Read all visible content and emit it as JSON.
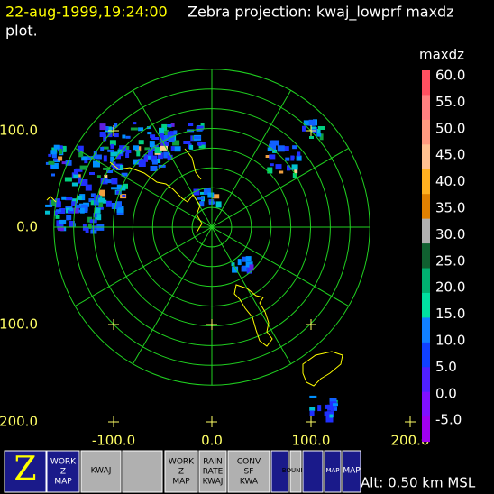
{
  "header": {
    "timestamp": "22-aug-1999,19:24:00",
    "title": "Zebra projection: kwaj_lowprf maxdz",
    "title_cont": "plot."
  },
  "plot": {
    "x_labels": [
      "-100.0",
      "0.0",
      "100.0",
      "200.0"
    ],
    "y_labels": [
      "100.0",
      "0.0",
      "100.0",
      "200.0"
    ]
  },
  "colorbar": {
    "field": "maxdz",
    "labels": [
      "60.0",
      "55.0",
      "50.0",
      "45.0",
      "40.0",
      "35.0",
      "30.0",
      "25.0",
      "20.0",
      "15.0",
      "10.0",
      "5.0",
      "0.0",
      "-5.0"
    ]
  },
  "toolbar": {
    "buttons": [
      {
        "lines": [
          "Z"
        ]
      },
      {
        "lines": [
          "WORK",
          "Z",
          "MAP"
        ]
      },
      {
        "lines": [
          "KWAJ"
        ]
      },
      {
        "lines": []
      },
      {
        "lines": [
          "WORK",
          "Z",
          "MAP"
        ]
      },
      {
        "lines": [
          "RAIN",
          "RATE",
          "KWAJ"
        ]
      },
      {
        "lines": [
          "CONV",
          "SF",
          "KWA"
        ]
      },
      {
        "lines": []
      },
      {
        "lines": [
          "BOUNDS"
        ]
      },
      {
        "lines": []
      },
      {
        "lines": [
          "MAP"
        ]
      },
      {
        "lines": [
          "MAP"
        ]
      }
    ],
    "status": "Alt: 0.50 km MSL"
  }
}
